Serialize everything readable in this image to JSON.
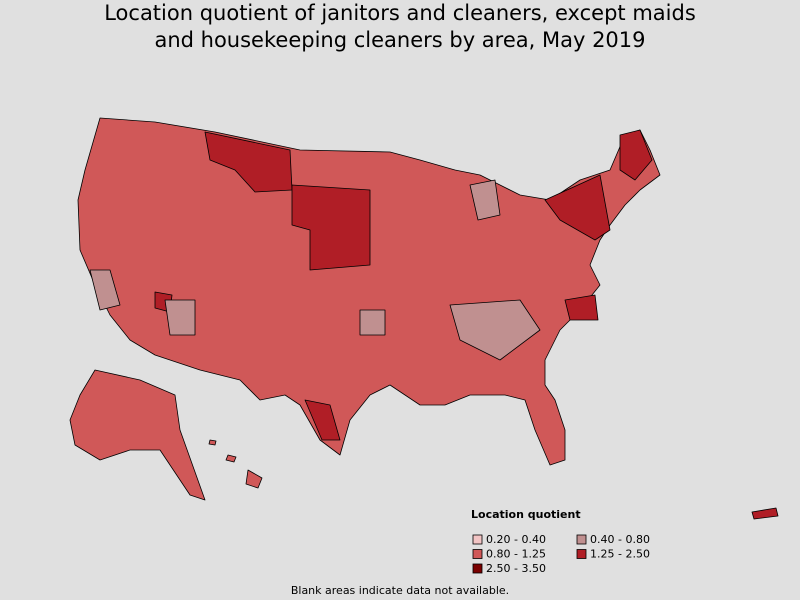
{
  "title_lines": [
    "Location quotient of janitors and cleaners, except maids",
    "and housekeeping cleaners by area, May 2019"
  ],
  "legend": {
    "title": "Location quotient",
    "items": [
      {
        "label": "0.20 - 0.40",
        "color": "#f2c4c4"
      },
      {
        "label": "0.40 - 0.80",
        "color": "#c09090"
      },
      {
        "label": "0.80 - 1.25",
        "color": "#d05858"
      },
      {
        "label": "1.25 - 2.50",
        "color": "#b01e26"
      },
      {
        "label": "2.50 - 3.50",
        "color": "#7a0000"
      }
    ]
  },
  "note": "Blank areas indicate data not available."
}
